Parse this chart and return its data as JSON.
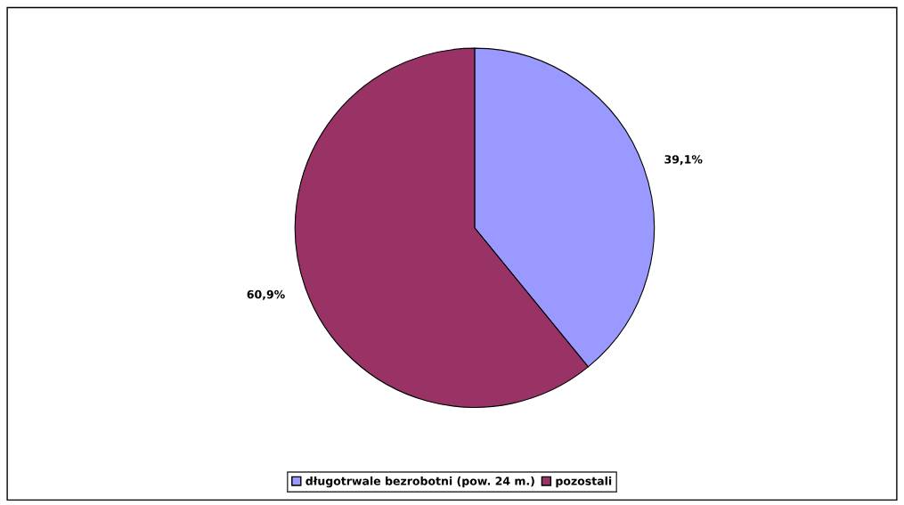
{
  "chart_data": {
    "type": "pie",
    "categories": [
      "długotrwale bezrobotni (pow. 24 m.)",
      "pozostali"
    ],
    "values": [
      39.1,
      60.9
    ],
    "value_labels": [
      "39,1%",
      "60,9%"
    ],
    "colors": [
      "#9999ff",
      "#993366"
    ],
    "legend": "bottom"
  }
}
